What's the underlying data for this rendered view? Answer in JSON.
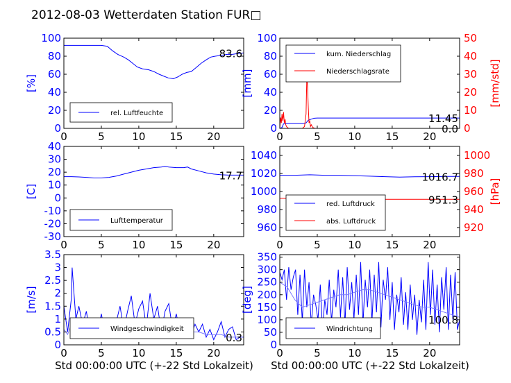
{
  "title": "2012-08-03 Wetterdaten Station FUR□",
  "xlabel": "Std 00:00:00 UTC (+-22 Std Lokalzeit)",
  "colors": {
    "left": "#0000ff",
    "right": "#ff0000",
    "light": "#7a7aff"
  },
  "chart_data": [
    {
      "id": "humidity",
      "type": "line",
      "xlim": [
        0,
        24
      ],
      "xticks": [
        0,
        5,
        10,
        15,
        20
      ],
      "ylim": [
        0,
        100
      ],
      "yticks": [
        0,
        20,
        40,
        60,
        80,
        100
      ],
      "ylabel": "[%]",
      "last_value": "83.6",
      "legend": [
        "rel. Luftfeuchte"
      ],
      "series": [
        {
          "name": "rel. Luftfeuchte",
          "color": "#0000ff",
          "x": [
            0,
            1,
            2,
            3,
            4,
            5,
            5.8,
            6.5,
            7.2,
            8,
            8.6,
            9.2,
            9.8,
            10.5,
            11.3,
            12,
            12.7,
            13.3,
            13.9,
            14.6,
            15.2,
            15.8,
            16.4,
            17,
            17.6,
            18.3,
            19,
            19.6,
            20.2,
            21,
            21.8,
            22.5,
            23.2,
            24
          ],
          "y": [
            92,
            92,
            92,
            92,
            92,
            92,
            91,
            86,
            82,
            79,
            76,
            72,
            68,
            66,
            65,
            63,
            60,
            58,
            56,
            55,
            57,
            60,
            62,
            63,
            67,
            72,
            76,
            79,
            80,
            81,
            82,
            82,
            83,
            83.6
          ]
        }
      ]
    },
    {
      "id": "precip",
      "type": "line",
      "xlim": [
        0,
        24
      ],
      "xticks": [
        0,
        5,
        10,
        15,
        20
      ],
      "ylim": [
        0,
        100
      ],
      "yticks": [
        0,
        20,
        40,
        60,
        80,
        100
      ],
      "ylabel": "[mm]",
      "ylim2": [
        0,
        50
      ],
      "yticks2": [
        0,
        10,
        20,
        30,
        40,
        50
      ],
      "ylabel2": "[mm/std]",
      "last_value": "11.45",
      "last_value2": "0.0",
      "legend": [
        "kum. Niederschlag",
        "Niederschlagsrate"
      ],
      "series": [
        {
          "name": "kum. Niederschlag",
          "color": "#0000ff",
          "x": [
            0,
            0.3,
            0.5,
            1,
            2,
            3,
            3.5,
            3.8,
            4.3,
            4.6,
            5,
            6,
            10,
            15,
            20,
            24
          ],
          "y": [
            0,
            1,
            5,
            5.5,
            5.5,
            5.5,
            6,
            9,
            10.5,
            11.2,
            11.45,
            11.45,
            11.45,
            11.45,
            11.45,
            11.45
          ]
        },
        {
          "name": "Niederschlagsrate",
          "color": "#ff0000",
          "axis": "right",
          "x": [
            0,
            0.1,
            0.2,
            0.3,
            0.4,
            0.5,
            0.6,
            0.7,
            0.8,
            0.9,
            1,
            1.2,
            1.5,
            2,
            2.5,
            3,
            3.3,
            3.5,
            3.6,
            3.7,
            3.8,
            3.9,
            4,
            4.1,
            4.2,
            4.4,
            4.7,
            5,
            24
          ],
          "y": [
            0,
            6,
            3,
            8,
            4,
            9,
            3,
            5,
            2,
            1,
            0.5,
            0,
            0,
            0,
            0,
            0,
            1,
            8,
            28,
            24,
            12,
            3,
            4,
            1,
            2,
            0.5,
            0,
            0,
            0
          ]
        }
      ]
    },
    {
      "id": "temperature",
      "type": "line",
      "xlim": [
        0,
        24
      ],
      "xticks": [
        0,
        5,
        10,
        15,
        20
      ],
      "ylim": [
        -30,
        40
      ],
      "yticks": [
        -30,
        -20,
        -10,
        0,
        10,
        20,
        30,
        40
      ],
      "ylabel": "[C]",
      "last_value": "17.7",
      "legend": [
        "Lufttemperatur"
      ],
      "series": [
        {
          "name": "Lufttemperatur",
          "color": "#0000ff",
          "x": [
            0,
            1,
            2,
            3,
            4,
            5,
            6,
            7,
            8,
            9,
            10,
            11,
            12,
            13,
            13.5,
            14,
            15,
            16,
            16.5,
            17,
            18,
            19,
            20,
            21,
            22,
            23,
            24
          ],
          "y": [
            16.5,
            16.5,
            16.3,
            16,
            15.5,
            15.5,
            16,
            17,
            18.5,
            20,
            21.5,
            22.5,
            23.5,
            24,
            24.5,
            24,
            23.5,
            23.5,
            24,
            22.5,
            21,
            19.5,
            18.5,
            18,
            17.7,
            17.7,
            17.7
          ]
        }
      ]
    },
    {
      "id": "pressure",
      "type": "line",
      "xlim": [
        0,
        24
      ],
      "xticks": [
        0,
        5,
        10,
        15,
        20
      ],
      "ylim": [
        950,
        1050
      ],
      "yticks": [
        960,
        980,
        1000,
        1020,
        1040
      ],
      "ylabel": "",
      "ylim2": [
        910,
        1010
      ],
      "yticks2": [
        920,
        940,
        960,
        980,
        1000
      ],
      "ylabel2": "[hPa]",
      "last_value": "1016.7",
      "last_value2": "951.3",
      "legend": [
        "red. Luftdruck",
        "abs. Luftdruck"
      ],
      "series": [
        {
          "name": "red. Luftdruck",
          "color": "#0000ff",
          "x": [
            0,
            2,
            4,
            6,
            8,
            10,
            12,
            14,
            16,
            18,
            20,
            22,
            24
          ],
          "y": [
            1018,
            1018,
            1018.5,
            1018,
            1018,
            1017.5,
            1017,
            1016.5,
            1016,
            1016.3,
            1016.5,
            1016.7,
            1016.7
          ]
        },
        {
          "name": "abs. Luftdruck",
          "color": "#ff0000",
          "axis": "right",
          "x": [
            0,
            2,
            4,
            6,
            8,
            10,
            12,
            14,
            16,
            18,
            20,
            22,
            24
          ],
          "y": [
            952.5,
            952.3,
            952.3,
            952.1,
            952,
            951.8,
            951.6,
            951.4,
            951.3,
            951.3,
            951.3,
            951.3,
            951.3
          ]
        }
      ]
    },
    {
      "id": "wind_speed",
      "type": "line",
      "xlim": [
        0,
        24
      ],
      "xticks": [
        0,
        5,
        10,
        15,
        20
      ],
      "ylim": [
        0,
        3.5
      ],
      "yticks": [
        0,
        0.5,
        1,
        1.5,
        2,
        2.5,
        3,
        3.5
      ],
      "ylabel": "[m/s]",
      "last_value": "0.3",
      "legend": [
        "Windgeschwindigkeit"
      ],
      "series": [
        {
          "name": "Windgeschwindigkeit",
          "color": "#0000ff",
          "x": [
            0,
            0.5,
            1,
            1.1,
            1.3,
            1.6,
            2,
            2.5,
            3,
            3.5,
            4,
            4.5,
            5,
            5.5,
            6,
            6.5,
            7,
            7.5,
            8,
            8.5,
            9,
            9.5,
            10,
            10.5,
            11,
            11.5,
            12,
            12.5,
            13,
            13.5,
            14,
            14.5,
            15,
            15.5,
            16,
            16.5,
            17,
            17.5,
            18,
            18.5,
            19,
            19.5,
            20,
            20.5,
            21,
            21.5,
            22,
            22.5,
            23,
            23.5,
            24
          ],
          "y": [
            1.5,
            0.5,
            1.8,
            3.0,
            2.2,
            1.0,
            1.5,
            0.8,
            1.3,
            0.4,
            0.9,
            0.5,
            1.2,
            0.4,
            1.0,
            0.3,
            0.9,
            1.5,
            0.6,
            1.3,
            1.9,
            0.8,
            1.4,
            1.7,
            0.7,
            2.0,
            1.0,
            1.5,
            0.5,
            1.3,
            1.6,
            0.6,
            1.2,
            0.5,
            0.9,
            1.0,
            0.4,
            0.8,
            0.5,
            0.8,
            0.3,
            0.6,
            0.2,
            0.5,
            0.9,
            0.3,
            0.6,
            0.7,
            0.2,
            0.3,
            0.3
          ]
        },
        {
          "name": "",
          "color": "#7a7aff",
          "x": [
            0,
            0.5,
            1,
            1.5,
            2,
            3,
            4,
            5,
            6,
            7,
            8,
            9,
            10,
            11,
            12,
            13,
            14,
            15,
            16,
            17,
            18,
            19,
            20,
            21,
            22,
            23,
            24
          ],
          "y": [
            0.6,
            0.4,
            0.8,
            0.9,
            0.5,
            0.6,
            0.5,
            0.6,
            0.5,
            0.6,
            0.7,
            0.7,
            0.8,
            0.8,
            0.8,
            0.7,
            0.7,
            0.7,
            0.6,
            0.5,
            0.5,
            0.4,
            0.4,
            0.4,
            0.3,
            0.3,
            0.3
          ]
        }
      ]
    },
    {
      "id": "wind_dir",
      "type": "line",
      "xlim": [
        0,
        24
      ],
      "xticks": [
        0,
        5,
        10,
        15,
        20
      ],
      "ylim": [
        0,
        360
      ],
      "yticks": [
        0,
        50,
        100,
        150,
        200,
        250,
        300,
        350
      ],
      "ylabel": "[deg]",
      "last_value": "100.8",
      "legend": [
        "Windrichtung"
      ],
      "series": [
        {
          "name": "Windrichtung",
          "color": "#0000ff",
          "x": [
            0,
            0.3,
            0.6,
            0.9,
            1.2,
            1.5,
            1.8,
            2.1,
            2.4,
            2.7,
            3,
            3.3,
            3.6,
            3.9,
            4.2,
            4.5,
            4.8,
            5.1,
            5.4,
            5.7,
            6,
            6.3,
            6.6,
            6.9,
            7.2,
            7.5,
            7.8,
            8.1,
            8.4,
            8.7,
            9,
            9.3,
            9.6,
            9.9,
            10.2,
            10.5,
            10.8,
            11.1,
            11.4,
            11.7,
            12,
            12.3,
            12.6,
            12.9,
            13.2,
            13.5,
            13.8,
            14.1,
            14.4,
            14.7,
            15,
            15.3,
            15.6,
            15.9,
            16.2,
            16.5,
            16.8,
            17.1,
            17.4,
            17.7,
            18,
            18.3,
            18.6,
            18.9,
            19.2,
            19.5,
            19.8,
            20.1,
            20.4,
            20.7,
            21,
            21.3,
            21.6,
            21.9,
            22.2,
            22.5,
            22.8,
            23.1,
            23.4,
            23.7,
            24
          ],
          "y": [
            290,
            260,
            300,
            180,
            310,
            220,
            270,
            300,
            120,
            280,
            90,
            300,
            150,
            250,
            80,
            200,
            160,
            100,
            240,
            60,
            180,
            120,
            260,
            90,
            220,
            150,
            300,
            110,
            270,
            80,
            310,
            140,
            250,
            100,
            280,
            120,
            330,
            80,
            260,
            150,
            300,
            90,
            280,
            130,
            330,
            70,
            260,
            180,
            310,
            100,
            250,
            60,
            200,
            130,
            270,
            80,
            210,
            60,
            240,
            100,
            200,
            40,
            180,
            90,
            260,
            60,
            330,
            120,
            300,
            80,
            240,
            50,
            270,
            140,
            310,
            60,
            280,
            100,
            290,
            60,
            100.8
          ]
        },
        {
          "name": "",
          "color": "#7a7aff",
          "x": [
            0,
            1,
            2,
            3,
            4,
            5,
            6,
            7,
            8,
            9,
            10,
            11,
            12,
            13,
            14,
            15,
            16,
            17,
            18,
            19,
            20,
            21,
            22,
            23,
            24
          ],
          "y": [
            250,
            230,
            180,
            150,
            160,
            170,
            180,
            190,
            200,
            200,
            210,
            220,
            220,
            210,
            200,
            190,
            180,
            170,
            160,
            150,
            150,
            140,
            130,
            120,
            110
          ]
        }
      ]
    }
  ]
}
